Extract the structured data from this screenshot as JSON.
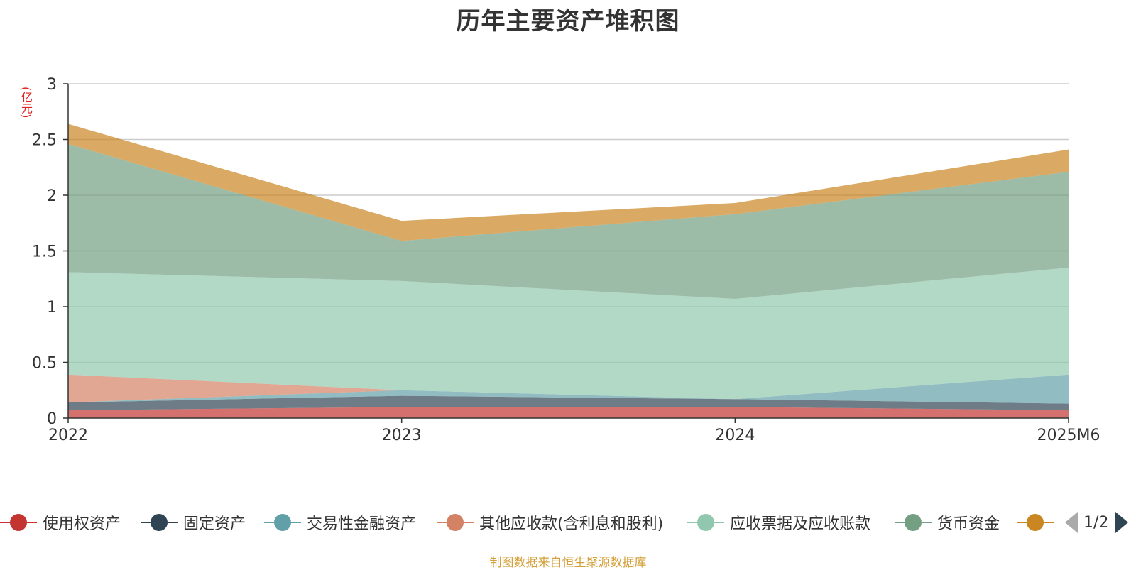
{
  "chart_data": {
    "type": "area",
    "title": "历年主要资产堆积图",
    "ylabel": "(亿元)",
    "categories": [
      "2022",
      "2023",
      "2024",
      "2025M6"
    ],
    "ylim": [
      0,
      3
    ],
    "yticks": [
      "0",
      "0.5",
      "1",
      "1.5",
      "2",
      "2.5",
      "3"
    ],
    "grid": true,
    "stacked": true,
    "legend_position": "bottom",
    "series": [
      {
        "name": "使用权资产",
        "color": "#c23531",
        "values": [
          0.07,
          0.1,
          0.1,
          0.07
        ]
      },
      {
        "name": "固定资产",
        "color": "#2f4554",
        "values": [
          0.07,
          0.1,
          0.07,
          0.06
        ]
      },
      {
        "name": "交易性金融资产",
        "color": "#61a0a8",
        "values": [
          0.0,
          0.05,
          0.0,
          0.26
        ]
      },
      {
        "name": "其他应收款(含利息和股利)",
        "color": "#d48265",
        "values": [
          0.25,
          0.0,
          0.0,
          0.0
        ]
      },
      {
        "name": "应收票据及应收账款",
        "color": "#91c7ae",
        "values": [
          0.92,
          0.98,
          0.9,
          0.96
        ]
      },
      {
        "name": "货币资金",
        "color": "#749f83",
        "values": [
          1.15,
          0.36,
          0.76,
          0.86
        ]
      },
      {
        "name": "",
        "color": "#ca8622",
        "values": [
          0.18,
          0.18,
          0.1,
          0.2
        ]
      }
    ]
  },
  "legend": {
    "pager": "1/2"
  },
  "source": "制图数据来自恒生聚源数据库"
}
